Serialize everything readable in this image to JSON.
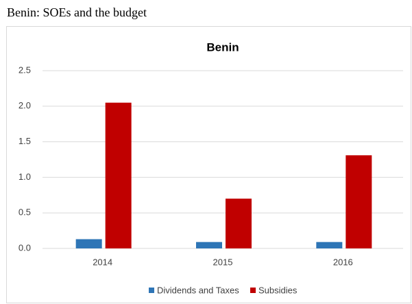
{
  "heading": "Benin: SOEs and the budget",
  "chart_data": {
    "type": "bar",
    "title": "Benin",
    "categories": [
      "2014",
      "2015",
      "2016"
    ],
    "series": [
      {
        "name": "Dividends and Taxes",
        "color": "#2e75b6",
        "values": [
          0.13,
          0.09,
          0.09
        ]
      },
      {
        "name": "Subsidies",
        "color": "#c00000",
        "values": [
          2.05,
          0.7,
          1.31
        ]
      }
    ],
    "ylim": [
      0,
      2.5
    ],
    "yticks": [
      {
        "value": 0,
        "label": "0.0"
      },
      0.5,
      {
        "value": 1,
        "label": "1.0"
      },
      1.5,
      {
        "value": 2,
        "label": "2.0"
      },
      2.5
    ],
    "grid": true,
    "legend": "bottom"
  }
}
